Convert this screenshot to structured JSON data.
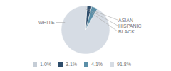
{
  "chart_data": {
    "type": "pie",
    "categories": [
      "WHITE",
      "ASIAN",
      "HISPANIC",
      "BLACK"
    ],
    "values": [
      91.8,
      4.1,
      3.1,
      1.0
    ],
    "value_labels": [
      "91.8%",
      "4.1%",
      "3.1%",
      "1.0%"
    ],
    "colors": [
      "#d6dce4",
      "#5b8fa8",
      "#2e4d6b",
      "#c5cdd6"
    ],
    "legend": "bottom"
  }
}
